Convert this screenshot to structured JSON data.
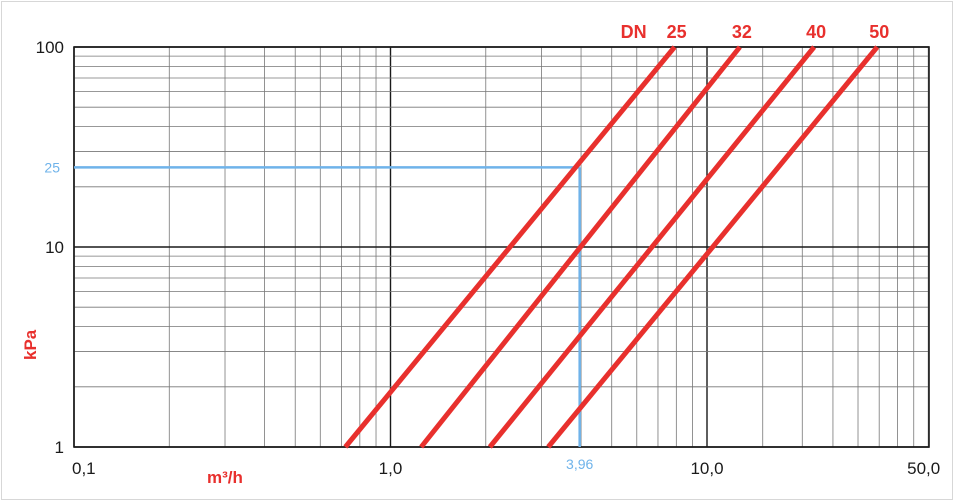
{
  "chart_data": {
    "type": "line",
    "x_scale": "log",
    "y_scale": "log",
    "xlim": [
      0.1,
      50.0
    ],
    "ylim": [
      1,
      100
    ],
    "xlabel": "m³/h",
    "ylabel": "kPa",
    "grid": true,
    "x_ticks": [
      {
        "value": 0.1,
        "label": "0,1"
      },
      {
        "value": 1.0,
        "label": "1,0"
      },
      {
        "value": 10.0,
        "label": "10,0"
      },
      {
        "value": 50.0,
        "label": "50,0"
      }
    ],
    "y_ticks": [
      {
        "value": 1,
        "label": "1"
      },
      {
        "value": 10,
        "label": "10"
      },
      {
        "value": 100,
        "label": "100"
      }
    ],
    "legend_prefix": "DN",
    "series": [
      {
        "name": "25",
        "points": [
          [
            0.72,
            1
          ],
          [
            7.9,
            100
          ]
        ]
      },
      {
        "name": "32",
        "points": [
          [
            1.25,
            1
          ],
          [
            12.7,
            100
          ]
        ]
      },
      {
        "name": "40",
        "points": [
          [
            2.06,
            1
          ],
          [
            21.8,
            100
          ]
        ]
      },
      {
        "name": "50",
        "points": [
          [
            3.15,
            1
          ],
          [
            34.5,
            100
          ]
        ]
      }
    ],
    "highlight": {
      "x": 3.96,
      "y": 25,
      "x_label": "3,96",
      "y_label": "25"
    },
    "colors": {
      "series": "#e8302d",
      "highlight": "#6fb3ea",
      "grid": "#777777",
      "major_grid": "#1a1a1a"
    }
  }
}
